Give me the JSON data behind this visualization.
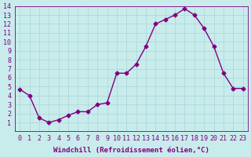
{
  "x": [
    0,
    1,
    2,
    3,
    4,
    5,
    6,
    7,
    8,
    9,
    10,
    11,
    12,
    13,
    14,
    15,
    16,
    17,
    18,
    19,
    20,
    21,
    22,
    23
  ],
  "y": [
    4.7,
    4.0,
    1.5,
    1.0,
    1.3,
    1.8,
    2.2,
    2.2,
    3.0,
    3.2,
    6.5,
    6.5,
    7.5,
    9.5,
    12.0,
    12.5,
    13.0,
    13.7,
    13.0,
    11.5,
    9.5,
    6.5,
    4.8,
    4.8
  ],
  "line_color": "#800080",
  "marker": "D",
  "marker_size": 2.5,
  "linewidth": 1.0,
  "bg_color": "#c8ecec",
  "grid_color": "#b0d8d8",
  "tick_color": "#800080",
  "label_color": "#800080",
  "xlabel": "Windchill (Refroidissement éolien,°C)",
  "xlim": [
    -0.5,
    23.5
  ],
  "ylim": [
    0,
    14
  ],
  "yticks": [
    1,
    2,
    3,
    4,
    5,
    6,
    7,
    8,
    9,
    10,
    11,
    12,
    13,
    14
  ],
  "xticks": [
    0,
    1,
    2,
    3,
    4,
    5,
    6,
    7,
    8,
    9,
    10,
    11,
    12,
    13,
    14,
    15,
    16,
    17,
    18,
    19,
    20,
    21,
    22,
    23
  ],
  "xlabel_fontsize": 6.5,
  "tick_fontsize": 6.0
}
